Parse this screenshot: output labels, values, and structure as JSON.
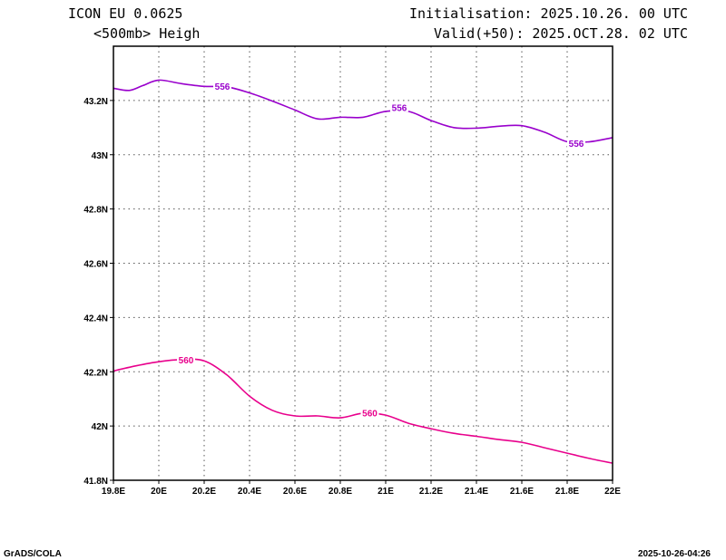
{
  "header": {
    "model": "ICON EU  0.0625",
    "field": "<500mb> Heigh",
    "init": "Initialisation: 2025.10.26. 00 UTC",
    "valid": "Valid(+50): 2025.OCT.28. 02 UTC"
  },
  "footer": {
    "left": "GrADS/COLA",
    "right": "2025-10-26-04:26"
  },
  "chart_data": {
    "type": "line",
    "xlim": [
      19.8,
      22.0
    ],
    "ylim": [
      41.8,
      43.4
    ],
    "grid": true,
    "x_ticks": [
      {
        "v": 19.8,
        "label": "19.8E"
      },
      {
        "v": 20.0,
        "label": "20E"
      },
      {
        "v": 20.2,
        "label": "20.2E"
      },
      {
        "v": 20.4,
        "label": "20.4E"
      },
      {
        "v": 20.6,
        "label": "20.6E"
      },
      {
        "v": 20.8,
        "label": "20.8E"
      },
      {
        "v": 21.0,
        "label": "21E"
      },
      {
        "v": 21.2,
        "label": "21.2E"
      },
      {
        "v": 21.4,
        "label": "21.4E"
      },
      {
        "v": 21.6,
        "label": "21.6E"
      },
      {
        "v": 21.8,
        "label": "21.8E"
      },
      {
        "v": 22.0,
        "label": "22E"
      }
    ],
    "y_ticks": [
      {
        "v": 41.8,
        "label": "41.8N"
      },
      {
        "v": 42.0,
        "label": "42N"
      },
      {
        "v": 42.2,
        "label": "42.2N"
      },
      {
        "v": 42.4,
        "label": "42.4N"
      },
      {
        "v": 42.6,
        "label": "42.6N"
      },
      {
        "v": 42.8,
        "label": "42.8N"
      },
      {
        "v": 43.0,
        "label": "43N"
      },
      {
        "v": 43.2,
        "label": "43.2N"
      }
    ],
    "series": [
      {
        "label": "556",
        "color": "#9900cc",
        "points": [
          [
            19.8,
            43.245
          ],
          [
            19.87,
            43.237
          ],
          [
            19.93,
            43.255
          ],
          [
            20.0,
            43.275
          ],
          [
            20.1,
            43.262
          ],
          [
            20.2,
            43.252
          ],
          [
            20.3,
            43.25
          ],
          [
            20.4,
            43.228
          ],
          [
            20.5,
            43.198
          ],
          [
            20.6,
            43.165
          ],
          [
            20.7,
            43.132
          ],
          [
            20.8,
            43.138
          ],
          [
            20.9,
            43.138
          ],
          [
            21.0,
            43.16
          ],
          [
            21.1,
            43.16
          ],
          [
            21.2,
            43.126
          ],
          [
            21.3,
            43.1
          ],
          [
            21.4,
            43.098
          ],
          [
            21.5,
            43.105
          ],
          [
            21.6,
            43.107
          ],
          [
            21.7,
            43.083
          ],
          [
            21.8,
            43.048
          ],
          [
            21.9,
            43.048
          ],
          [
            22.0,
            43.063
          ]
        ],
        "label_positions": [
          [
            20.28,
            43.253
          ],
          [
            21.06,
            43.175
          ],
          [
            21.84,
            43.042
          ]
        ]
      },
      {
        "label": "560",
        "color": "#e8008c",
        "points": [
          [
            19.8,
            42.203
          ],
          [
            19.9,
            42.222
          ],
          [
            20.0,
            42.237
          ],
          [
            20.1,
            42.245
          ],
          [
            20.2,
            42.24
          ],
          [
            20.3,
            42.188
          ],
          [
            20.4,
            42.11
          ],
          [
            20.5,
            42.058
          ],
          [
            20.6,
            42.037
          ],
          [
            20.7,
            42.037
          ],
          [
            20.8,
            42.03
          ],
          [
            20.9,
            42.047
          ],
          [
            21.0,
            42.04
          ],
          [
            21.1,
            42.01
          ],
          [
            21.2,
            41.99
          ],
          [
            21.3,
            41.973
          ],
          [
            21.4,
            41.962
          ],
          [
            21.5,
            41.95
          ],
          [
            21.6,
            41.94
          ],
          [
            21.7,
            41.92
          ],
          [
            21.8,
            41.9
          ],
          [
            21.9,
            41.88
          ],
          [
            22.0,
            41.863
          ]
        ],
        "label_positions": [
          [
            20.12,
            42.244
          ],
          [
            20.93,
            42.049
          ]
        ]
      }
    ]
  }
}
